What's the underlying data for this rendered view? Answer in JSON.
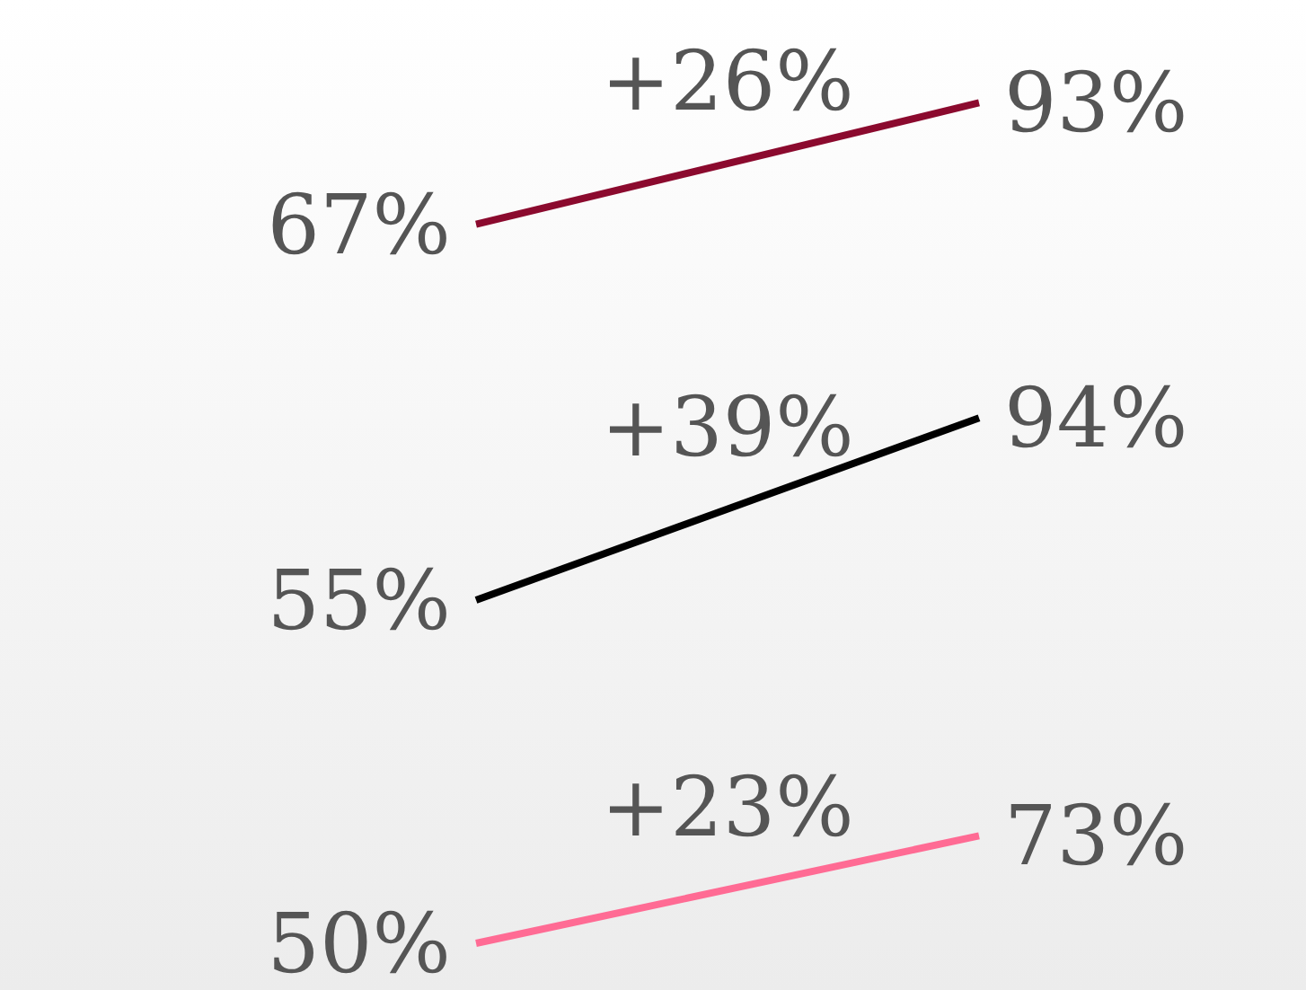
{
  "chart_data": [
    {
      "type": "line",
      "categories": [
        null,
        null
      ],
      "values": [
        67,
        93
      ],
      "color": "#8b0a2e",
      "value_labels": [
        "67%",
        "93%"
      ],
      "annotations": [
        "+26%"
      ]
    },
    {
      "type": "line",
      "categories": [
        null,
        null
      ],
      "values": [
        55,
        94
      ],
      "color": "#000000",
      "value_labels": [
        "55%",
        "94%"
      ],
      "annotations": [
        "+39%"
      ]
    },
    {
      "type": "line",
      "categories": [
        null,
        null
      ],
      "values": [
        50,
        73
      ],
      "color": "#ff6b94",
      "value_labels": [
        "50%",
        "73%"
      ],
      "annotations": [
        "+23%"
      ]
    }
  ]
}
